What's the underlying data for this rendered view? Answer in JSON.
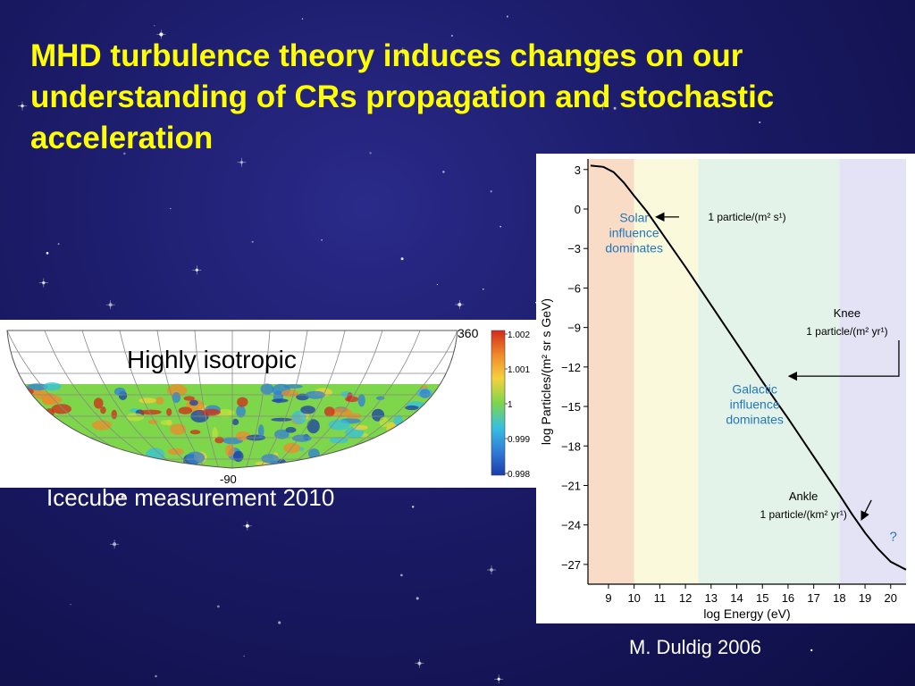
{
  "slide": {
    "title": "MHD turbulence theory induces changes on our understanding of CRs propagation and stochastic acceleration"
  },
  "skymap": {
    "label": "Highly isotropic",
    "caption": "Icecube measurement 2010",
    "lon_label": "360",
    "lat_label": "-90",
    "colorbar_ticks": [
      "1.002",
      "1.001",
      "1",
      "0.999",
      "0.998"
    ],
    "colors": {
      "low": "#1a3caa",
      "mid": "#7ed64a",
      "high": "#d42a1a"
    }
  },
  "chart_data": {
    "type": "line",
    "xlabel": "log Energy (eV)",
    "ylabel": "log Particles/(m² sr s GeV)",
    "x_ticks": [
      9,
      10,
      11,
      12,
      13,
      14,
      15,
      16,
      17,
      18,
      19,
      20
    ],
    "y_ticks": [
      3,
      0,
      -3,
      -6,
      -9,
      -12,
      -15,
      -18,
      -21,
      -24,
      -27
    ],
    "y_tick_labels": [
      "3",
      "0",
      "−3",
      "−6",
      "−9",
      "−12",
      "−15",
      "−18",
      "−21",
      "−24",
      "−27"
    ],
    "xlim": [
      8.2,
      20.6
    ],
    "ylim": [
      -28.5,
      3.8
    ],
    "series": [
      {
        "x": [
          8.3,
          8.8,
          9.2,
          9.6,
          10.0,
          10.5,
          11.0,
          11.5,
          12.0,
          13.0,
          14.0,
          15.0,
          15.6,
          16.0,
          17.0,
          18.0,
          18.5,
          19.0,
          19.5,
          20.0,
          20.6
        ],
        "y": [
          3.3,
          3.2,
          2.8,
          2.0,
          1.0,
          -0.2,
          -1.6,
          -3.0,
          -4.4,
          -7.3,
          -10.2,
          -13.1,
          -14.8,
          -15.9,
          -18.8,
          -21.7,
          -23.2,
          -24.6,
          -25.8,
          -26.8,
          -27.4
        ]
      }
    ],
    "bands": [
      {
        "from": 8.2,
        "to": 10.0,
        "color": "#f9dcc6"
      },
      {
        "from": 10.0,
        "to": 12.5,
        "color": "#fbf9dc"
      },
      {
        "from": 12.5,
        "to": 18.0,
        "color": "#e4f3e9"
      },
      {
        "from": 18.0,
        "to": 20.6,
        "color": "#e3e3f5"
      }
    ],
    "line_color": "#000000",
    "region_color": "#2277bb",
    "regions": [
      {
        "text": [
          "Solar",
          "influence",
          "dominates"
        ],
        "x": 10.0,
        "y": -1.0
      },
      {
        "text": [
          "Galactic",
          "influence",
          "dominates"
        ],
        "x": 14.7,
        "y": -14.0
      }
    ],
    "annotations": [
      {
        "title": "",
        "text": "1 particle/(m² s¹)",
        "x": 14.4,
        "y": -0.6,
        "target": [
          11.0,
          -0.6
        ]
      },
      {
        "title": "Knee",
        "text": "1 particle/(m² yr¹)",
        "x": 18.3,
        "y": -9.3,
        "target": [
          15.9,
          -12.7
        ]
      },
      {
        "title": "Ankle",
        "text": "1 particle/(km² yr¹)",
        "x": 16.6,
        "y": -23.2,
        "target": [
          19.0,
          -23.6
        ]
      }
    ],
    "unknown_marker": {
      "text": "?",
      "x": 20.1,
      "y": -25.2
    }
  },
  "credit": "M. Duldig 2006"
}
